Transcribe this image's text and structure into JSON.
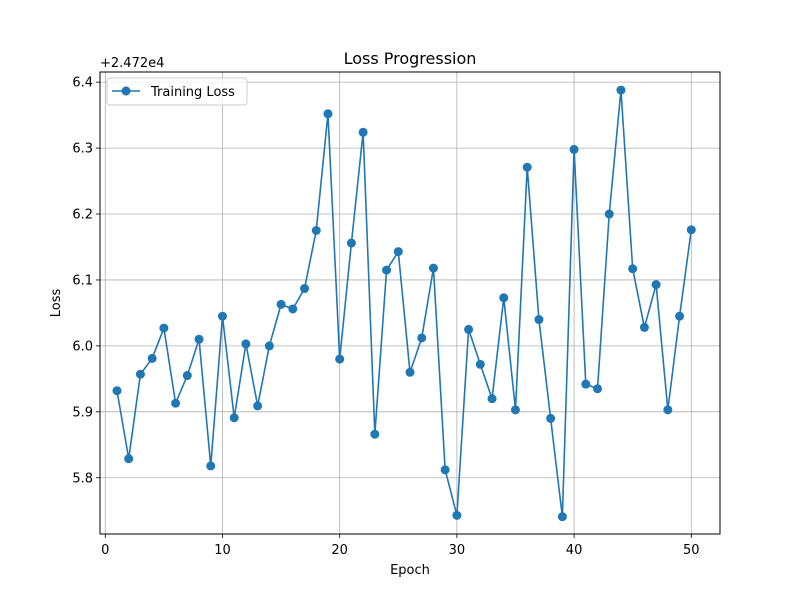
{
  "chart_data": {
    "type": "line",
    "title": "Loss Progression",
    "xlabel": "Epoch",
    "ylabel": "Loss",
    "offset_text": "+2.472e4",
    "xlim": [
      -0.45,
      52.45
    ],
    "ylim": [
      5.7147,
      6.4154
    ],
    "xticks": [
      0,
      10,
      20,
      30,
      40,
      50
    ],
    "yticks": [
      5.8,
      5.9,
      6.0,
      6.1,
      6.2,
      6.3,
      6.4
    ],
    "ytick_labels": [
      "5.8",
      "5.9",
      "6.0",
      "6.1",
      "6.2",
      "6.3",
      "6.4"
    ],
    "grid": true,
    "legend_position": "top-left",
    "series": [
      {
        "name": "Training Loss",
        "color": "#1f77b4",
        "x": [
          1,
          2,
          3,
          4,
          5,
          6,
          7,
          8,
          9,
          10,
          11,
          12,
          13,
          14,
          15,
          16,
          17,
          18,
          19,
          20,
          21,
          22,
          23,
          24,
          25,
          26,
          27,
          28,
          29,
          30,
          31,
          32,
          33,
          34,
          35,
          36,
          37,
          38,
          39,
          40,
          41,
          42,
          43,
          44,
          45,
          46,
          47,
          48,
          49,
          50
        ],
        "y": [
          5.932,
          5.829,
          5.957,
          5.981,
          6.027,
          5.913,
          5.955,
          6.01,
          5.818,
          6.045,
          5.891,
          6.003,
          5.909,
          6.0,
          6.063,
          6.056,
          6.087,
          6.175,
          6.352,
          5.98,
          6.156,
          6.324,
          5.866,
          6.115,
          6.143,
          5.96,
          6.012,
          6.118,
          5.812,
          5.743,
          6.025,
          5.972,
          5.92,
          6.073,
          5.903,
          6.271,
          6.04,
          5.89,
          5.741,
          6.298,
          5.942,
          5.935,
          6.2,
          6.388,
          6.117,
          6.028,
          6.093,
          5.903,
          6.045,
          6.176
        ]
      }
    ]
  }
}
